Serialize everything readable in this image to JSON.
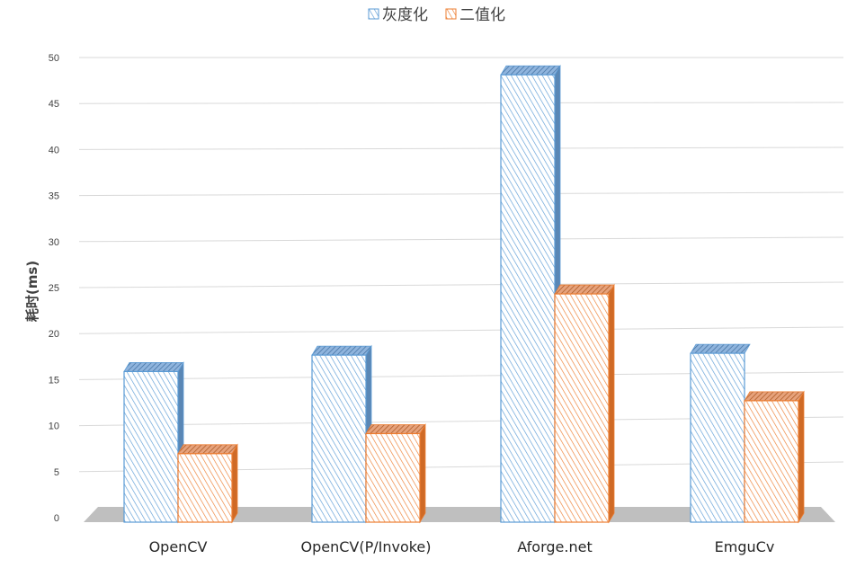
{
  "chart_data": {
    "type": "bar",
    "title": "",
    "xlabel": "",
    "ylabel": "耗时(ms)",
    "ylim": [
      0,
      50
    ],
    "yticks": [
      0,
      5,
      10,
      15,
      20,
      25,
      30,
      35,
      40,
      45,
      50
    ],
    "grid": true,
    "legend_position": "top-center",
    "categories": [
      "OpenCV",
      "OpenCV(P/Invoke)",
      "Aforge.net",
      "EmguCv"
    ],
    "series": [
      {
        "name": "灰度化",
        "values": [
          16.5,
          18.3,
          49,
          18.5
        ],
        "color": "#5b9bd5"
      },
      {
        "name": "二值化",
        "values": [
          7.5,
          9.7,
          25,
          13.3
        ],
        "color": "#ed7d31"
      }
    ]
  }
}
